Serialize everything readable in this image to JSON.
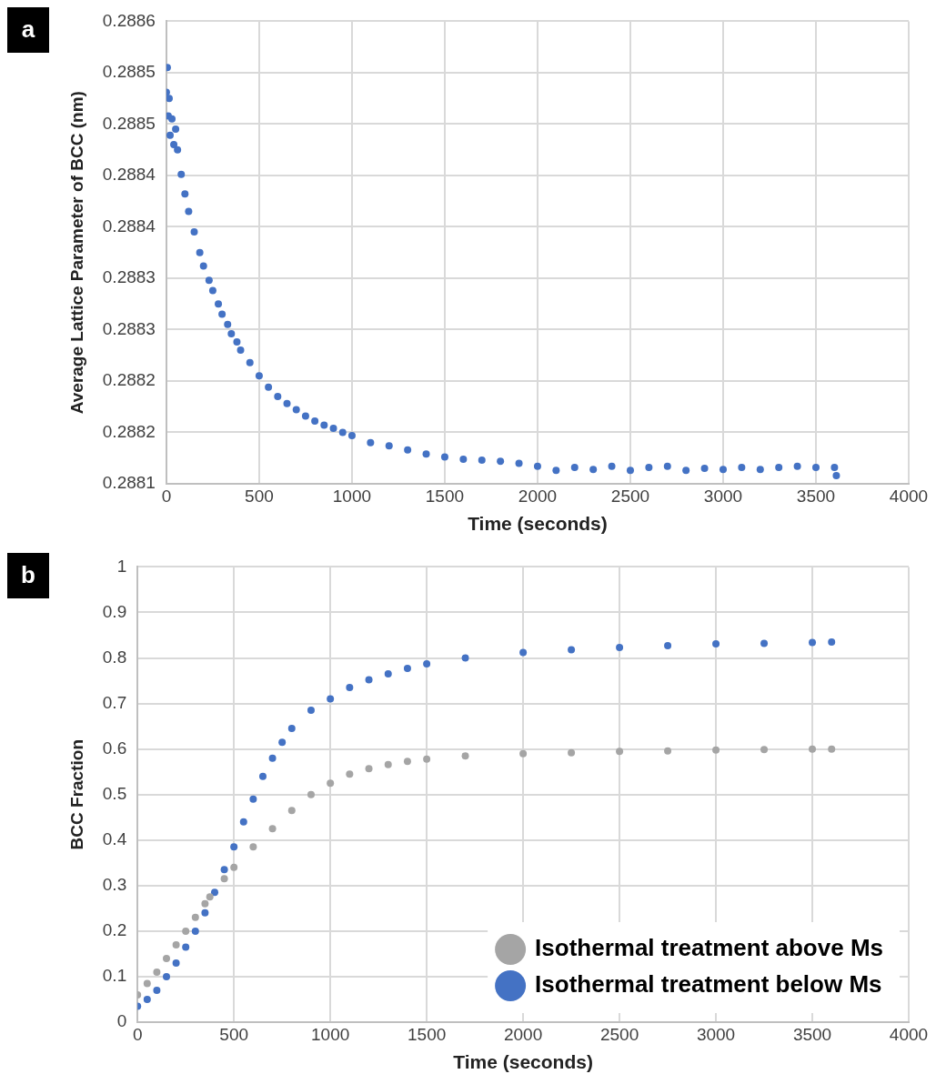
{
  "chart_data": [
    {
      "type": "scatter",
      "title": "a",
      "xlabel": "Time (seconds)",
      "ylabel": "Average Lattice Parameter of BCC (nm)",
      "marker": "circle",
      "grid": true,
      "legend": false,
      "xlim": [
        0,
        4000
      ],
      "xticks": [
        0,
        500,
        1000,
        1500,
        2000,
        2500,
        3000,
        3500,
        4000
      ],
      "ylim": [
        0.2881,
        0.28855
      ],
      "yticks": [
        {
          "value": 0.2881,
          "label": "0.2881"
        },
        {
          "value": 0.28815,
          "label": "0.2882"
        },
        {
          "value": 0.2882,
          "label": "0.2882"
        },
        {
          "value": 0.28825,
          "label": "0.2883"
        },
        {
          "value": 0.2883,
          "label": "0.2883"
        },
        {
          "value": 0.28835,
          "label": "0.2884"
        },
        {
          "value": 0.2884,
          "label": "0.2884"
        },
        {
          "value": 0.28845,
          "label": "0.2885"
        },
        {
          "value": 0.2885,
          "label": "0.2885"
        },
        {
          "value": 0.28855,
          "label": "0.2886"
        }
      ],
      "series": [
        {
          "color": "#4472c4",
          "x": [
            0,
            5,
            10,
            15,
            20,
            30,
            40,
            50,
            60,
            80,
            100,
            120,
            150,
            180,
            200,
            230,
            250,
            280,
            300,
            330,
            350,
            380,
            400,
            450,
            500,
            550,
            600,
            650,
            700,
            750,
            800,
            850,
            900,
            950,
            1000,
            1100,
            1200,
            1300,
            1400,
            1500,
            1600,
            1700,
            1800,
            1900,
            2000,
            2100,
            2200,
            2300,
            2400,
            2500,
            2600,
            2700,
            2800,
            2900,
            3000,
            3100,
            3200,
            3300,
            3400,
            3500,
            3600,
            3610
          ],
          "values": [
            0.288481,
            0.288505,
            0.288458,
            0.288475,
            0.288439,
            0.288455,
            0.28843,
            0.288445,
            0.288425,
            0.288401,
            0.288382,
            0.288365,
            0.288345,
            0.288325,
            0.288312,
            0.288298,
            0.288288,
            0.288275,
            0.288265,
            0.288255,
            0.288246,
            0.288238,
            0.28823,
            0.288218,
            0.288205,
            0.288194,
            0.288185,
            0.288178,
            0.288172,
            0.288166,
            0.288161,
            0.288157,
            0.288154,
            0.28815,
            0.288147,
            0.28814,
            0.288137,
            0.288133,
            0.288129,
            0.288126,
            0.288124,
            0.288123,
            0.288122,
            0.28812,
            0.288117,
            0.288113,
            0.288116,
            0.288114,
            0.288117,
            0.288113,
            0.288116,
            0.288117,
            0.288113,
            0.288115,
            0.288114,
            0.288116,
            0.288114,
            0.288116,
            0.288117,
            0.288116,
            0.288116,
            0.288108
          ]
        }
      ]
    },
    {
      "type": "scatter",
      "title": "b",
      "xlabel": "Time (seconds)",
      "ylabel": "BCC Fraction",
      "marker": "circle",
      "grid": true,
      "legend": "bottom right",
      "xlim": [
        0,
        4000
      ],
      "xticks": [
        0,
        500,
        1000,
        1500,
        2000,
        2500,
        3000,
        3500,
        4000
      ],
      "ylim": [
        0,
        1
      ],
      "yticks": [
        0,
        0.1,
        0.2,
        0.3,
        0.4,
        0.5,
        0.6,
        0.7,
        0.8,
        0.9,
        1
      ],
      "series": [
        {
          "name": "Isothermal treatment above Ms",
          "color": "#a5a5a5",
          "x": [
            0,
            50,
            100,
            150,
            200,
            250,
            300,
            350,
            375,
            450,
            500,
            600,
            700,
            800,
            900,
            1000,
            1100,
            1200,
            1300,
            1400,
            1500,
            1700,
            2000,
            2250,
            2500,
            2750,
            3000,
            3250,
            3500,
            3600
          ],
          "values": [
            0.06,
            0.085,
            0.11,
            0.14,
            0.17,
            0.2,
            0.23,
            0.26,
            0.275,
            0.315,
            0.34,
            0.385,
            0.425,
            0.465,
            0.5,
            0.525,
            0.545,
            0.557,
            0.566,
            0.573,
            0.578,
            0.585,
            0.59,
            0.592,
            0.595,
            0.596,
            0.598,
            0.599,
            0.6,
            0.6
          ]
        },
        {
          "name": "Isothermal treatment below Ms",
          "color": "#4472c4",
          "x": [
            0,
            50,
            100,
            150,
            200,
            250,
            300,
            350,
            400,
            450,
            500,
            550,
            600,
            650,
            700,
            750,
            800,
            900,
            1000,
            1100,
            1200,
            1300,
            1400,
            1500,
            1700,
            2000,
            2250,
            2500,
            2750,
            3000,
            3250,
            3500,
            3600
          ],
          "values": [
            0.035,
            0.05,
            0.07,
            0.1,
            0.13,
            0.165,
            0.2,
            0.24,
            0.285,
            0.335,
            0.385,
            0.44,
            0.49,
            0.54,
            0.58,
            0.615,
            0.645,
            0.685,
            0.71,
            0.735,
            0.752,
            0.765,
            0.777,
            0.787,
            0.8,
            0.812,
            0.818,
            0.823,
            0.827,
            0.831,
            0.832,
            0.834,
            0.835
          ]
        }
      ]
    }
  ]
}
